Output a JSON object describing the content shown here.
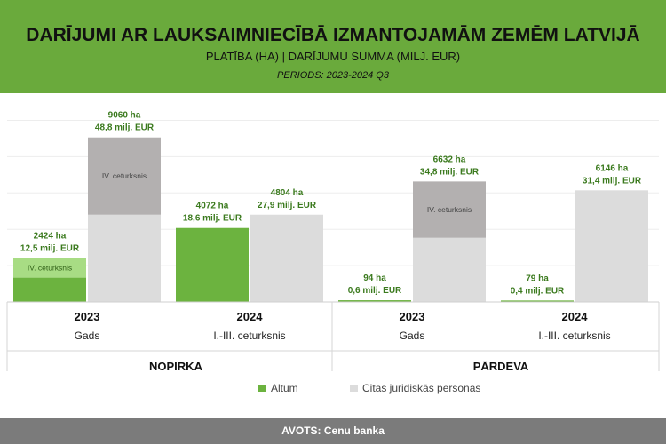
{
  "title": "DARĪJUMI AR LAUKSAIMNIECĪBĀ IZMANTOJAMĀM ZEMĒM LATVIJĀ",
  "subtitle": "PLATĪBA (HA) | DARĪJUMU SUMMA (MILJ. EUR)",
  "period": "PERIODS: 2023-2024 Q3",
  "source": "AVOTS:  Cenu banka",
  "colors": {
    "header": "#6aaa3c",
    "altum": "#6cb33f",
    "altum_q4": "#a8dc84",
    "citas": "#dcdcdc",
    "citas_q4": "#b3b0b0",
    "label": "#3b7a1e",
    "footer": "#7b7b7b"
  },
  "chart_data": {
    "type": "bar",
    "ylim": [
      0,
      10000
    ],
    "grid": true,
    "legend_position": "bottom",
    "series": [
      {
        "name": "Altum",
        "color": "#6cb33f"
      },
      {
        "name": "Citas juridiskās personas",
        "color": "#dcdcdc"
      }
    ],
    "groups": [
      {
        "name": "NOPIRKA",
        "periods": [
          {
            "year": "2023",
            "sub": "Gads",
            "bars": [
              {
                "series": "Altum",
                "value": 2424,
                "q4_value": 1084,
                "q4_label": "IV. ceturksnis",
                "label_ha": "2424 ha",
                "label_eur": "12,5 milj. EUR"
              },
              {
                "series": "Citas juridiskās personas",
                "value": 9060,
                "q4_value": 4256,
                "q4_label": "IV. ceturksnis",
                "label_ha": "9060 ha",
                "label_eur": "48,8 milj. EUR"
              }
            ]
          },
          {
            "year": "2024",
            "sub": "I.-III. ceturksnis",
            "bars": [
              {
                "series": "Altum",
                "value": 4072,
                "q4_value": 0,
                "q4_label": "",
                "label_ha": "4072 ha",
                "label_eur": "18,6 milj. EUR"
              },
              {
                "series": "Citas juridiskās personas",
                "value": 4804,
                "q4_value": 0,
                "q4_label": "",
                "label_ha": "4804 ha",
                "label_eur": "27,9 milj. EUR"
              }
            ]
          }
        ]
      },
      {
        "name": "PĀRDEVA",
        "periods": [
          {
            "year": "2023",
            "sub": "Gads",
            "bars": [
              {
                "series": "Altum",
                "value": 94,
                "q4_value": 0,
                "q4_label": "",
                "label_ha": "94 ha",
                "label_eur": "0,6 milj. EUR"
              },
              {
                "series": "Citas juridiskās personas",
                "value": 6632,
                "q4_value": 3098,
                "q4_label": "IV. ceturksnis",
                "label_ha": "6632 ha",
                "label_eur": "34,8 milj. EUR"
              }
            ]
          },
          {
            "year": "2024",
            "sub": "I.-III. ceturksnis",
            "bars": [
              {
                "series": "Altum",
                "value": 79,
                "q4_value": 0,
                "q4_label": "",
                "label_ha": "79 ha",
                "label_eur": "0,4 milj. EUR"
              },
              {
                "series": "Citas juridiskās personas",
                "value": 6146,
                "q4_value": 0,
                "q4_label": "",
                "label_ha": "6146 ha",
                "label_eur": "31,4 milj. EUR"
              }
            ]
          }
        ]
      }
    ]
  }
}
